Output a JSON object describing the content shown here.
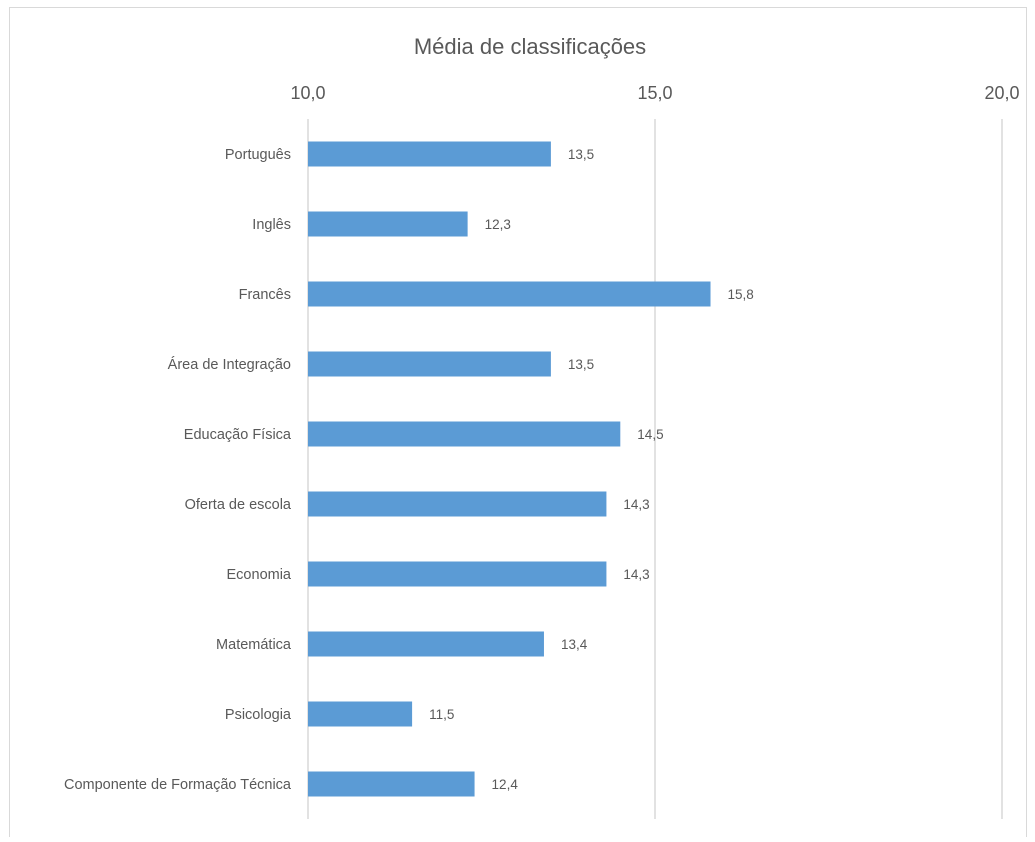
{
  "chart_data": {
    "type": "bar",
    "orientation": "horizontal",
    "title": "Média de classificações",
    "categories": [
      "Português",
      "Inglês",
      "Francês",
      "Área de Integração",
      "Educação Física",
      "Oferta de escola",
      "Economia",
      "Matemática",
      "Psicologia",
      "Componente de Formação Técnica"
    ],
    "values": [
      13.5,
      12.3,
      15.8,
      13.5,
      14.5,
      14.3,
      14.3,
      13.4,
      11.5,
      12.4
    ],
    "value_labels": [
      "13,5",
      "12,3",
      "15,8",
      "13,5",
      "14,5",
      "14,3",
      "14,3",
      "13,4",
      "11,5",
      "12,4"
    ],
    "xlim": [
      10,
      20
    ],
    "x_ticks": [
      10,
      15,
      20
    ],
    "x_tick_labels": [
      "10,0",
      "15,0",
      "20,0"
    ],
    "x_axis_position": "top",
    "grid": true,
    "legend": "none",
    "bar_color": "#5b9bd5",
    "gridline_color": "#d9d9d9",
    "text_color": "#595959"
  }
}
